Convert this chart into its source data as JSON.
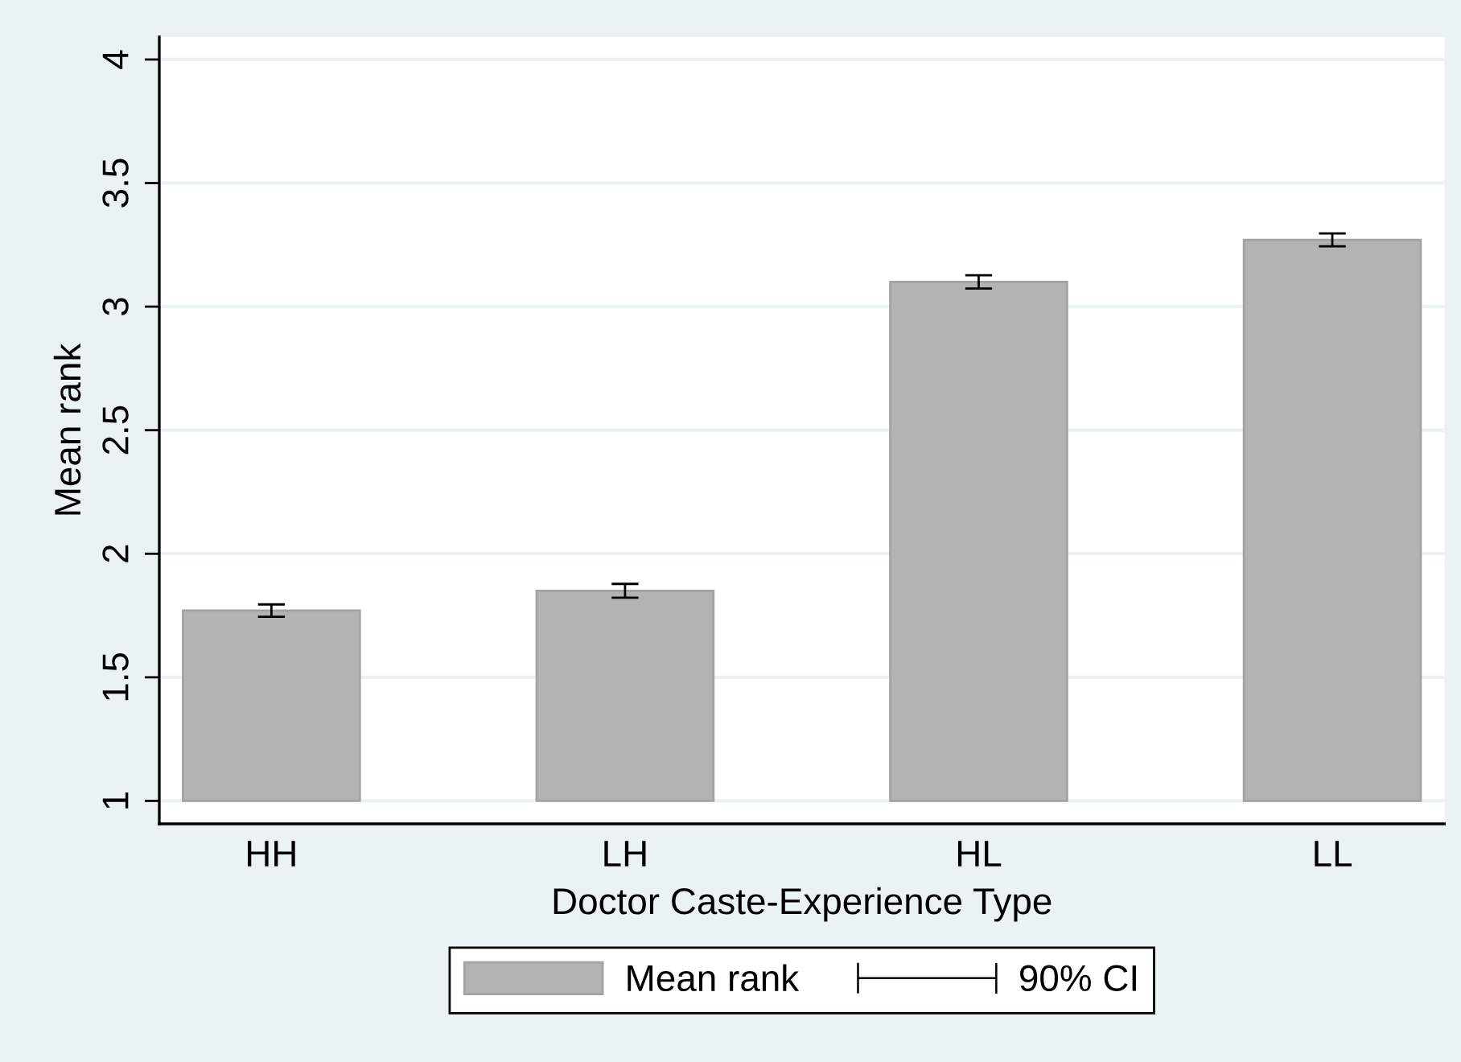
{
  "chart_data": {
    "type": "bar",
    "xlabel": "Doctor Caste-Experience Type",
    "ylabel": "Mean rank",
    "categories": [
      "HH",
      "LH",
      "HL",
      "LL"
    ],
    "series": [
      {
        "name": "Mean rank",
        "color": "#b3b3b3",
        "base": [
          1,
          1,
          1,
          1
        ],
        "values": [
          0.77,
          0.85,
          2.1,
          2.27
        ],
        "errors": [
          0.025,
          0.028,
          0.027,
          0.026
        ]
      }
    ],
    "annotations": [
      "90% CI"
    ],
    "ylim": [
      0.907,
      4.091
    ],
    "yticks": [
      1,
      1.5,
      2,
      2.5,
      3,
      3.5,
      4
    ],
    "grid": "y",
    "legend": "bottom"
  }
}
